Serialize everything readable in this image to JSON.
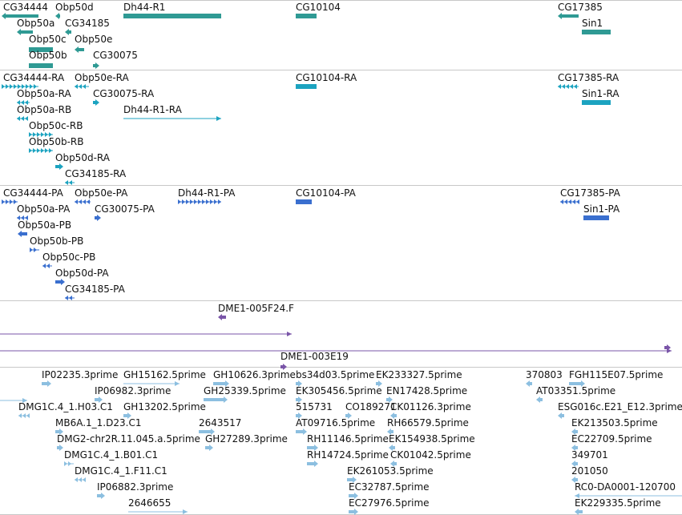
{
  "tracks": [
    {
      "name": "gene",
      "color": "#2f9a94",
      "features": [
        {
          "label": "CG34444"
        },
        {
          "label": "Obp50d"
        },
        {
          "label": "Dh44-R1"
        },
        {
          "label": "CG10104"
        },
        {
          "label": "CG17385"
        },
        {
          "label": "Obp50a"
        },
        {
          "label": "CG34185"
        },
        {
          "label": "Sin1"
        },
        {
          "label": "Obp50c"
        },
        {
          "label": "Obp50e"
        },
        {
          "label": "Obp50b"
        },
        {
          "label": "CG30075"
        }
      ]
    },
    {
      "name": "transcript",
      "color": "#1ca3c0",
      "features": [
        {
          "label": "CG34444-RA"
        },
        {
          "label": "Obp50e-RA"
        },
        {
          "label": "CG10104-RA"
        },
        {
          "label": "CG17385-RA"
        },
        {
          "label": "Obp50a-RA"
        },
        {
          "label": "CG30075-RA"
        },
        {
          "label": "Sin1-RA"
        },
        {
          "label": "Obp50a-RB"
        },
        {
          "label": "Dh44-R1-RA"
        },
        {
          "label": "Obp50c-RB"
        },
        {
          "label": "Obp50b-RB"
        },
        {
          "label": "Obp50d-RA"
        },
        {
          "label": "CG34185-RA"
        }
      ]
    },
    {
      "name": "protein",
      "color": "#3a6fcf",
      "features": [
        {
          "label": "CG34444-PA"
        },
        {
          "label": "Obp50e-PA"
        },
        {
          "label": "Dh44-R1-PA"
        },
        {
          "label": "CG10104-PA"
        },
        {
          "label": "CG17385-PA"
        },
        {
          "label": "Obp50a-PA"
        },
        {
          "label": "CG30075-PA"
        },
        {
          "label": "Sin1-PA"
        },
        {
          "label": "Obp50a-PB"
        },
        {
          "label": "Obp50b-PB"
        },
        {
          "label": "Obp50c-PB"
        },
        {
          "label": "Obp50d-PA"
        },
        {
          "label": "CG34185-PA"
        }
      ]
    },
    {
      "name": "clone",
      "color": "#7a55a8",
      "features": [
        {
          "label": "DME1-005F24.F"
        },
        {
          "label": "DME1-003E19"
        }
      ]
    },
    {
      "name": "est",
      "color": "#8cbfe0",
      "features": [
        {
          "label": "IP02235.3prime"
        },
        {
          "label": "GH15162.5prime"
        },
        {
          "label": "GH10626.3prime"
        },
        {
          "label": "bs34d03.5prime"
        },
        {
          "label": "EK233327.5prime"
        },
        {
          "label": "370803"
        },
        {
          "label": "FGH115E07.5prime"
        },
        {
          "label": "IP06982.3prime"
        },
        {
          "label": "GH25339.5prime"
        },
        {
          "label": "EK305456.5prime"
        },
        {
          "label": "EN17428.5prime"
        },
        {
          "label": "AT03351.5prime"
        },
        {
          "label": "DMG1C.4_1.H03.C1"
        },
        {
          "label": "GH13202.5prime"
        },
        {
          "label": "515731"
        },
        {
          "label": "CO189271"
        },
        {
          "label": "CK01126.3prime"
        },
        {
          "label": "ESG016c.E21_E12.3prime"
        },
        {
          "label": "MB6A.1_1.D23.C1"
        },
        {
          "label": "2643517"
        },
        {
          "label": "AT09716.5prime"
        },
        {
          "label": "RH66579.5prime"
        },
        {
          "label": "EK213503.5prime"
        },
        {
          "label": "DMG2-chr2R.11.045.a.5prime"
        },
        {
          "label": "GH27289.3prime"
        },
        {
          "label": "RH11146.5prime"
        },
        {
          "label": "EK154938.5prime"
        },
        {
          "label": "EC22709.5prime"
        },
        {
          "label": "DMG1C.4_1.B01.C1"
        },
        {
          "label": "RH14724.5prime"
        },
        {
          "label": "CK01042.5prime"
        },
        {
          "label": "349701"
        },
        {
          "label": "DMG1C.4_1.F11.C1"
        },
        {
          "label": "EK261053.5prime"
        },
        {
          "label": "201050"
        },
        {
          "label": "IP06882.3prime"
        },
        {
          "label": "EC32787.5prime"
        },
        {
          "label": "RC0-DA0001-120700"
        },
        {
          "label": "2646655"
        },
        {
          "label": "EC27976.5prime"
        },
        {
          "label": "EK229335.5prime"
        }
      ]
    }
  ]
}
